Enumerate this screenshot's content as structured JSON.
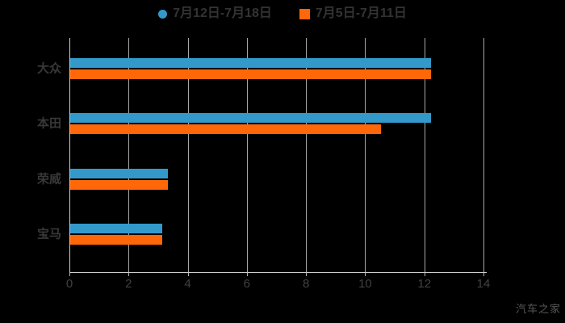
{
  "legend": {
    "items": [
      {
        "label": "7月12日-7月18日",
        "marker": "circle",
        "color": "#3399cb"
      },
      {
        "label": "7月5日-7月11日",
        "marker": "square",
        "color": "#ff6708"
      }
    ]
  },
  "chart_data": {
    "type": "bar",
    "orientation": "horizontal",
    "categories": [
      "大众",
      "本田",
      "荣威",
      "宝马"
    ],
    "series": [
      {
        "name": "7月12日-7月18日",
        "color": "#3399cb",
        "values": [
          12.2,
          12.2,
          3.3,
          3.1
        ]
      },
      {
        "name": "7月5日-7月11日",
        "color": "#ff6708",
        "values": [
          12.2,
          10.5,
          3.3,
          3.1
        ]
      }
    ],
    "xlim": [
      0,
      14
    ],
    "xticks": [
      0,
      2,
      4,
      6,
      8,
      10,
      12,
      14
    ],
    "grid": true,
    "legend_position": "top-center",
    "background": "#000000"
  },
  "watermark": "汽车之家"
}
